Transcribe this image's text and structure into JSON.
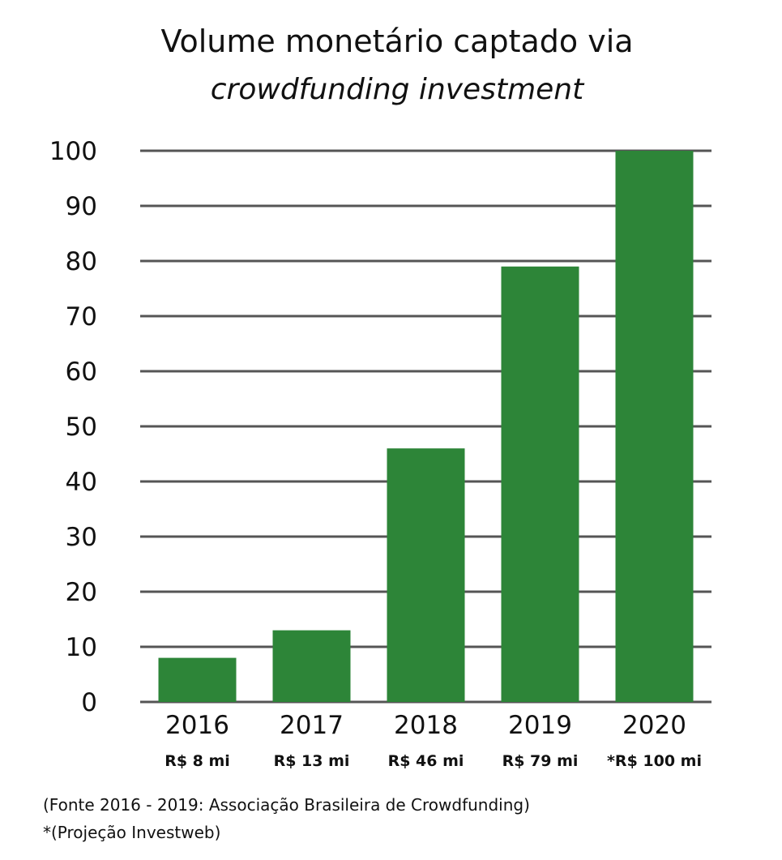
{
  "chart_data": {
    "type": "bar",
    "title": "Volume monetário captado via",
    "subtitle": "crowdfunding investment",
    "categories": [
      "2016",
      "2017",
      "2018",
      "2019",
      "2020"
    ],
    "values": [
      8,
      13,
      46,
      79,
      100
    ],
    "data_labels": [
      "R$ 8 mi",
      "R$ 13 mi",
      "R$ 46 mi",
      "R$ 79 mi",
      "*R$ 100 mi"
    ],
    "yticks": [
      0,
      10,
      20,
      30,
      40,
      50,
      60,
      70,
      80,
      90,
      100
    ],
    "ylim": [
      0,
      100
    ],
    "xlabel": "",
    "ylabel": "",
    "grid": true,
    "legend": "none",
    "bar_color": "#2d8538",
    "grid_color": "#555555"
  },
  "notes": {
    "source": "(Fonte 2016 - 2019: Associação Brasileira de Crowdfunding)",
    "projection": "*(Projeção Investweb)"
  }
}
